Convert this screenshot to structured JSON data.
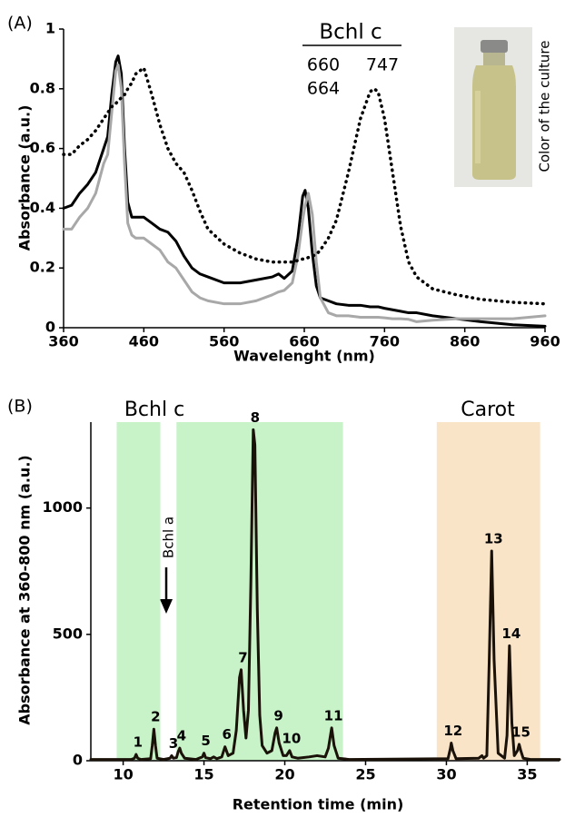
{
  "chart_data": [
    {
      "type": "line",
      "panel_label": "(A)",
      "x_label": "Wavelenght (nm)",
      "y_label": "Absorbance (a.u.)",
      "legend_title": "Bchl c",
      "inset_label": "Color of the culture",
      "xlim": [
        360,
        960
      ],
      "ylim": [
        0,
        1
      ],
      "xticks": [
        360,
        460,
        560,
        660,
        760,
        860,
        960
      ],
      "yticks": [
        0,
        0.2,
        0.4,
        0.6,
        0.8,
        1
      ],
      "x": [
        360,
        370,
        380,
        390,
        400,
        410,
        415,
        420,
        425,
        428,
        432,
        436,
        440,
        445,
        450,
        460,
        470,
        480,
        490,
        500,
        510,
        520,
        530,
        540,
        560,
        580,
        600,
        620,
        628,
        635,
        645,
        652,
        658,
        661,
        665,
        670,
        675,
        680,
        690,
        700,
        715,
        730,
        742,
        747,
        752,
        760,
        770,
        780,
        790,
        800,
        820,
        850,
        880,
        920,
        960
      ],
      "series": [
        {
          "name": "660",
          "color": "#000000",
          "style": "solid",
          "values": [
            0.4,
            0.41,
            0.45,
            0.48,
            0.52,
            0.6,
            0.64,
            0.78,
            0.89,
            0.91,
            0.85,
            0.6,
            0.42,
            0.37,
            0.37,
            0.37,
            0.35,
            0.33,
            0.32,
            0.29,
            0.24,
            0.2,
            0.18,
            0.17,
            0.15,
            0.15,
            0.16,
            0.17,
            0.18,
            0.165,
            0.19,
            0.3,
            0.44,
            0.46,
            0.4,
            0.25,
            0.14,
            0.1,
            0.09,
            0.08,
            0.075,
            0.075,
            0.07,
            0.07,
            0.07,
            0.065,
            0.06,
            0.055,
            0.05,
            0.05,
            0.04,
            0.03,
            0.02,
            0.01,
            0.005
          ]
        },
        {
          "name": "664",
          "color": "#a8a8a8",
          "style": "solid",
          "values": [
            0.33,
            0.33,
            0.37,
            0.4,
            0.45,
            0.55,
            0.58,
            0.72,
            0.86,
            0.88,
            0.8,
            0.55,
            0.35,
            0.31,
            0.3,
            0.3,
            0.28,
            0.26,
            0.22,
            0.2,
            0.16,
            0.12,
            0.1,
            0.09,
            0.08,
            0.08,
            0.09,
            0.11,
            0.12,
            0.125,
            0.15,
            0.24,
            0.36,
            0.41,
            0.45,
            0.38,
            0.22,
            0.1,
            0.05,
            0.04,
            0.04,
            0.035,
            0.035,
            0.035,
            0.035,
            0.033,
            0.03,
            0.03,
            0.028,
            0.02,
            0.025,
            0.03,
            0.03,
            0.03,
            0.04
          ]
        },
        {
          "name": "747",
          "color": "#000000",
          "style": "dotted",
          "values": [
            0.58,
            0.58,
            0.61,
            0.63,
            0.66,
            0.7,
            0.72,
            0.74,
            0.75,
            0.76,
            0.77,
            0.78,
            0.8,
            0.82,
            0.85,
            0.87,
            0.78,
            0.68,
            0.6,
            0.55,
            0.52,
            0.46,
            0.39,
            0.33,
            0.28,
            0.25,
            0.23,
            0.22,
            0.22,
            0.22,
            0.22,
            0.225,
            0.23,
            0.23,
            0.235,
            0.24,
            0.245,
            0.26,
            0.3,
            0.36,
            0.52,
            0.7,
            0.79,
            0.8,
            0.79,
            0.7,
            0.52,
            0.34,
            0.22,
            0.17,
            0.13,
            0.11,
            0.095,
            0.085,
            0.08
          ]
        }
      ]
    },
    {
      "type": "line",
      "panel_label": "(B)",
      "x_label": "Retention time (min)",
      "y_label": "Absorbance at 360-800 nm (a.u.)",
      "annotation": "Bchl a",
      "xlim": [
        8,
        37
      ],
      "ylim": [
        0,
        1340
      ],
      "xticks": [
        10,
        15,
        20,
        25,
        30,
        35
      ],
      "yticks": [
        0,
        500,
        1000
      ],
      "color": "#1a1208",
      "regions": [
        {
          "label": "Bchl c",
          "color": "#c8f2c8",
          "label_color": "#1f8f1f",
          "ranges": [
            [
              9.6,
              12.3
            ],
            [
              13.3,
              23.6
            ]
          ]
        },
        {
          "label": "Carot",
          "color": "#fae4c8",
          "label_color": "#e01018",
          "ranges": [
            [
              29.4,
              35.8
            ]
          ]
        }
      ],
      "x": [
        8,
        10.5,
        10.7,
        10.8,
        10.9,
        11.1,
        11.7,
        11.8,
        11.9,
        12.0,
        12.1,
        12.5,
        12.9,
        13.0,
        13.1,
        13.3,
        13.4,
        13.5,
        13.6,
        13.8,
        14.5,
        14.9,
        15.0,
        15.1,
        15.4,
        15.6,
        15.8,
        16.1,
        16.3,
        16.5,
        16.8,
        17.0,
        17.2,
        17.3,
        17.45,
        17.6,
        17.75,
        17.9,
        18.05,
        18.15,
        18.3,
        18.45,
        18.6,
        18.9,
        19.2,
        19.4,
        19.5,
        19.65,
        19.9,
        20.1,
        20.3,
        20.45,
        20.8,
        21.5,
        22.0,
        22.5,
        22.7,
        22.9,
        23.05,
        23.3,
        24,
        30.1,
        30.25,
        30.3,
        30.4,
        30.6,
        32.0,
        32.2,
        32.3,
        32.5,
        32.65,
        32.8,
        32.95,
        33.2,
        33.6,
        33.75,
        33.9,
        34.05,
        34.2,
        34.4,
        34.5,
        34.6,
        34.75,
        35.2,
        37
      ],
      "values": [
        5,
        5,
        10,
        25,
        10,
        5,
        8,
        60,
        125,
        60,
        10,
        5,
        10,
        20,
        10,
        12,
        35,
        50,
        30,
        10,
        5,
        15,
        30,
        12,
        8,
        15,
        8,
        15,
        55,
        20,
        30,
        120,
        330,
        360,
        200,
        90,
        200,
        700,
        1310,
        1250,
        600,
        180,
        60,
        30,
        40,
        110,
        130,
        70,
        20,
        20,
        40,
        15,
        10,
        15,
        20,
        15,
        50,
        130,
        60,
        10,
        5,
        8,
        50,
        70,
        40,
        8,
        10,
        20,
        10,
        20,
        400,
        830,
        400,
        30,
        10,
        100,
        455,
        150,
        20,
        40,
        65,
        40,
        10,
        5,
        5
      ],
      "peaks": [
        {
          "text": "1",
          "x": 10.8,
          "y": 25
        },
        {
          "text": "2",
          "x": 11.9,
          "y": 125
        },
        {
          "text": "3",
          "x": 13.0,
          "y": 20
        },
        {
          "text": "4",
          "x": 13.5,
          "y": 50
        },
        {
          "text": "5",
          "x": 15.0,
          "y": 30
        },
        {
          "text": "6",
          "x": 16.3,
          "y": 55
        },
        {
          "text": "7",
          "x": 17.3,
          "y": 360
        },
        {
          "text": "8",
          "x": 18.05,
          "y": 1310
        },
        {
          "text": "9",
          "x": 19.5,
          "y": 130
        },
        {
          "text": "10",
          "x": 20.3,
          "y": 40
        },
        {
          "text": "11",
          "x": 22.9,
          "y": 130
        },
        {
          "text": "12",
          "x": 30.3,
          "y": 70
        },
        {
          "text": "13",
          "x": 32.8,
          "y": 830
        },
        {
          "text": "14",
          "x": 33.9,
          "y": 455
        },
        {
          "text": "15",
          "x": 34.5,
          "y": 65
        }
      ]
    }
  ]
}
